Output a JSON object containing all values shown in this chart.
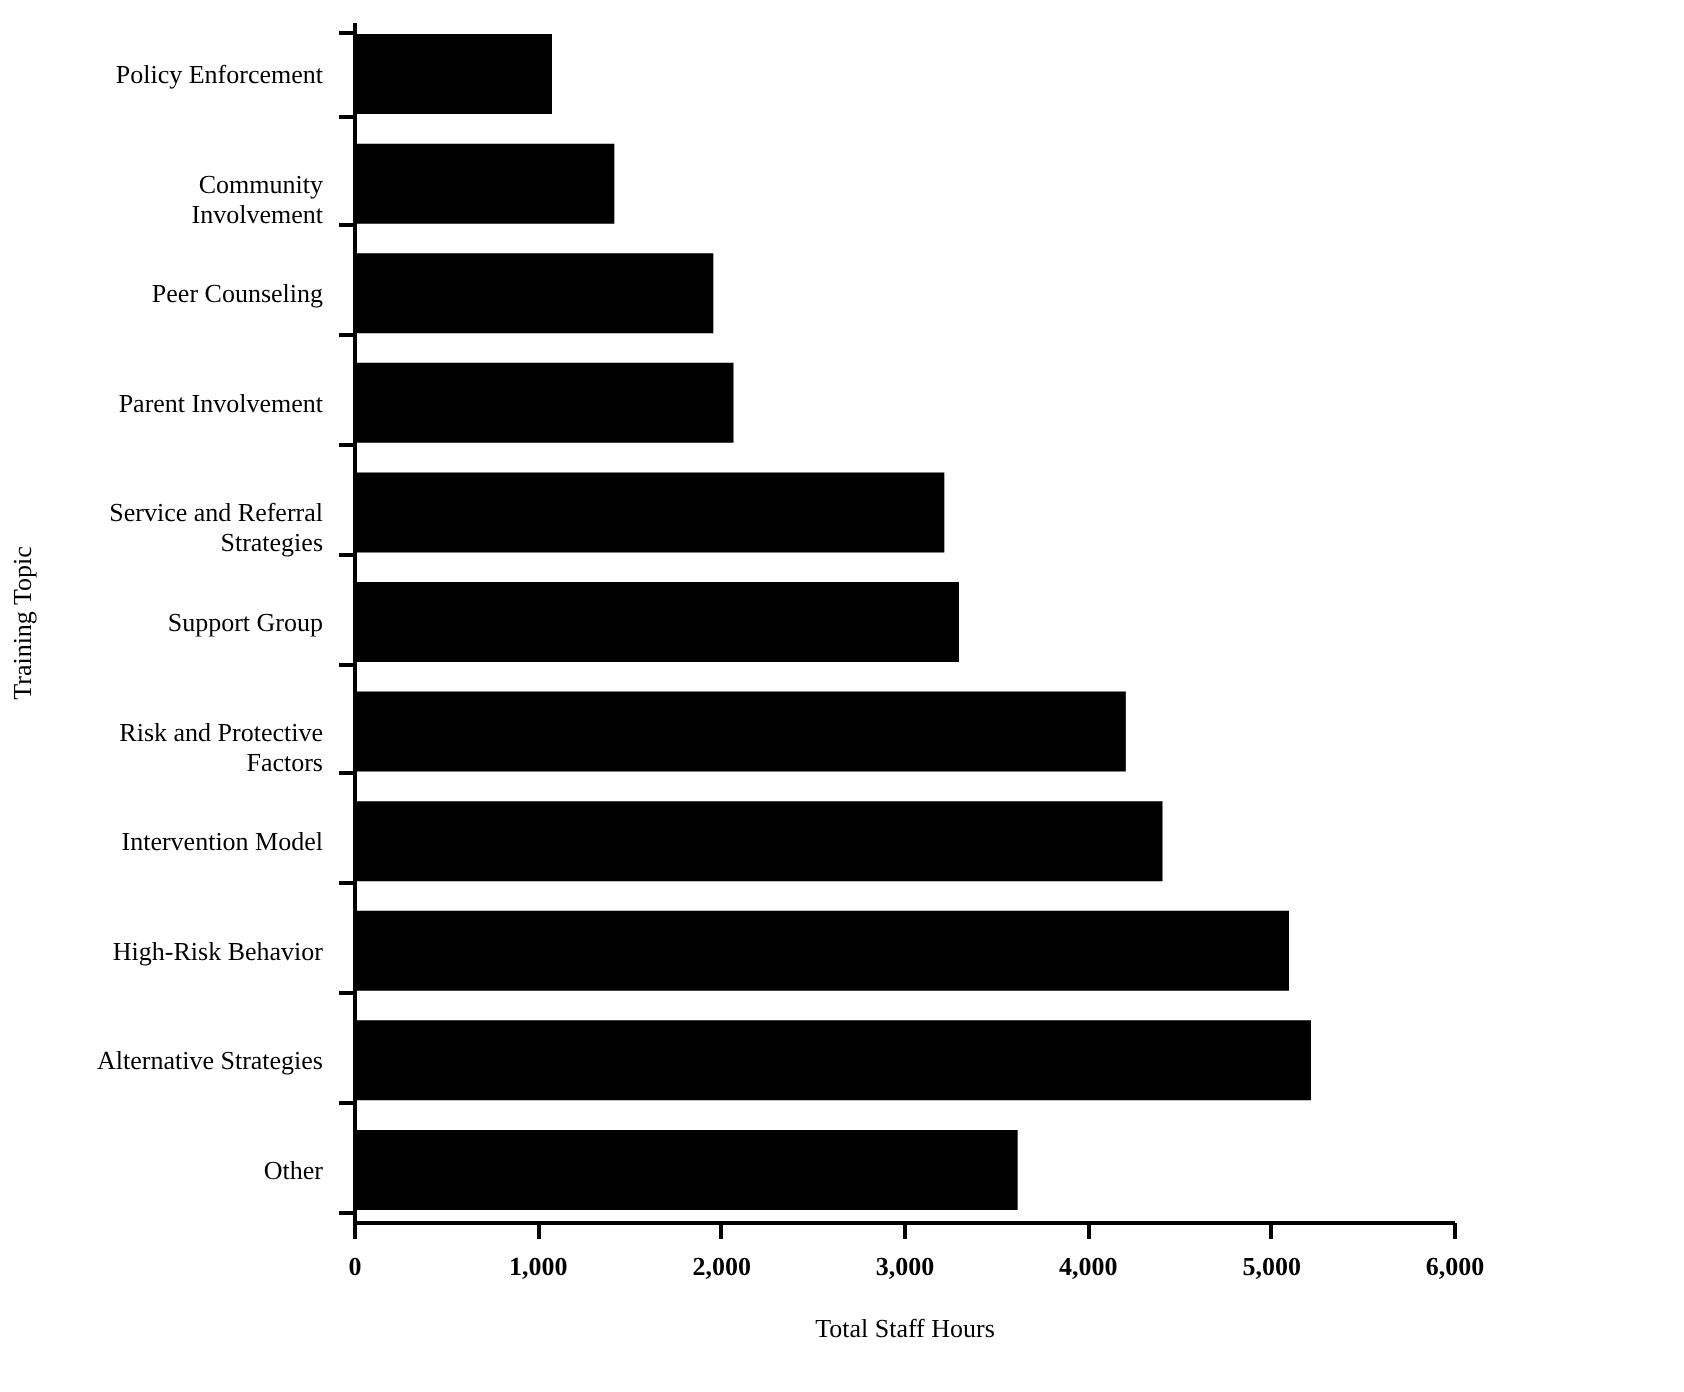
{
  "chart_data": {
    "type": "bar",
    "orientation": "horizontal",
    "xlabel": "Total Staff Hours",
    "ylabel": "Training Topic",
    "categories": [
      "Policy Enforcement",
      "Community\nInvolvement",
      "Peer Counseling",
      "Parent Involvement",
      "Service and Referral\nStrategies",
      "Support Group",
      "Risk and Protective\nFactors",
      "Intervention Model",
      "High-Risk Behavior",
      "Alternative Strategies",
      "Other"
    ],
    "values": [
      1080,
      1420,
      1960,
      2070,
      3220,
      3300,
      4210,
      4410,
      5100,
      5220,
      3620
    ],
    "color": "#000000",
    "xlim": [
      0,
      6000
    ],
    "xticks": [
      0,
      {
        "value": 1000,
        "label": "1,000"
      },
      {
        "value": 2000,
        "label": "2,000"
      },
      {
        "value": 3000,
        "label": "3,000"
      },
      {
        "value": 4000,
        "label": "4,000"
      },
      {
        "value": 5000,
        "label": "5,000"
      },
      {
        "value": 6000,
        "label": "6,000"
      }
    ],
    "grid": false
  }
}
